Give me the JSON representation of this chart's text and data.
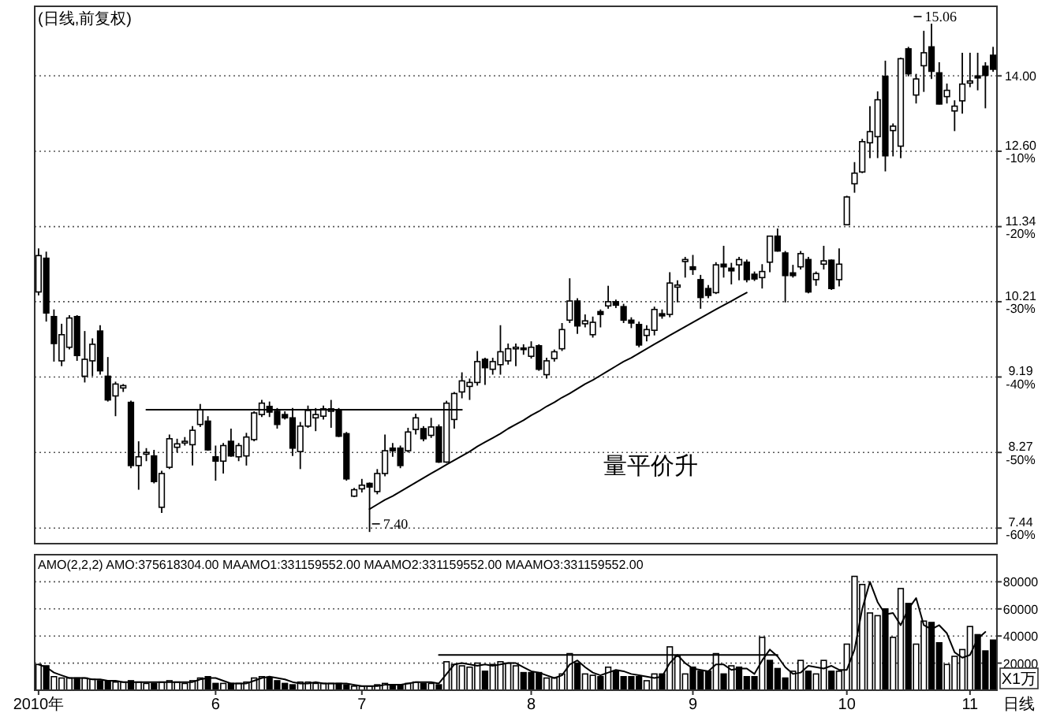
{
  "chart_data": [
    {
      "type": "candlestick",
      "title": "(日线,前复权)",
      "log": true,
      "grid": "y",
      "tick_labels": "y",
      "categories": [
        null,
        null,
        null,
        null,
        null,
        null,
        null,
        null,
        null,
        null,
        null,
        null,
        null,
        null,
        null,
        null,
        null,
        null,
        null,
        null,
        null,
        null,
        null,
        null,
        null,
        null,
        null,
        null,
        null,
        null,
        null,
        null,
        null,
        null,
        null,
        null,
        null,
        null,
        null,
        null,
        null,
        null,
        null,
        null,
        null,
        null,
        null,
        null,
        null,
        null,
        null,
        null,
        null,
        null,
        null,
        null,
        null,
        null,
        null,
        null,
        null,
        null,
        null,
        null,
        null,
        null,
        null,
        null,
        null,
        null,
        null,
        null,
        null,
        null,
        null,
        null,
        null,
        null,
        null,
        null,
        null,
        null,
        null,
        null,
        null,
        null,
        null,
        null,
        null,
        null,
        null,
        null,
        null,
        null,
        null,
        null,
        null,
        null,
        null,
        null,
        null,
        null,
        null,
        null,
        null,
        null,
        null,
        null,
        null,
        null,
        null,
        null,
        null,
        null,
        null,
        null,
        null,
        null,
        null,
        null,
        null,
        null,
        null,
        null,
        null
      ],
      "ylim": [
        7.28,
        15.43
      ],
      "yticks": [
        {
          "value": 14,
          "label": "14.00"
        },
        {
          "value": 12.6,
          "label": "12.60"
        },
        {
          "value": 11.34,
          "label": "11.34"
        },
        {
          "value": 10.21,
          "label": "10.21"
        },
        {
          "value": 9.19,
          "label": "9.19"
        },
        {
          "value": 8.27,
          "label": "8.27"
        },
        {
          "value": 7.44,
          "label": "7.44"
        }
      ],
      "y2lim": [
        -62.07,
        9.24
      ],
      "y2ticks": [
        {
          "value": -10,
          "label": "-10%"
        },
        {
          "value": -20,
          "label": "-20%"
        },
        {
          "value": -30,
          "label": "-30%"
        },
        {
          "value": -40,
          "label": "-40%"
        },
        {
          "value": -50,
          "label": "-50%"
        },
        {
          "value": -60,
          "label": "-60%"
        }
      ],
      "ohlc": [
        [
          10.35,
          11.0,
          10.3,
          10.89
        ],
        [
          10.85,
          10.95,
          9.93,
          10.05
        ],
        [
          10.0,
          10.1,
          9.39,
          9.63
        ],
        [
          9.4,
          9.9,
          9.33,
          9.75
        ],
        [
          9.58,
          10.02,
          9.55,
          9.98
        ],
        [
          10.0,
          10.02,
          9.4,
          9.47
        ],
        [
          9.2,
          9.8,
          9.12,
          9.42
        ],
        [
          9.4,
          9.7,
          9.2,
          9.62
        ],
        [
          9.8,
          9.88,
          9.22,
          9.27
        ],
        [
          9.2,
          9.45,
          8.88,
          8.9
        ],
        [
          8.95,
          9.13,
          8.7,
          9.1
        ],
        [
          9.05,
          9.1,
          9.0,
          9.08
        ],
        [
          8.87,
          8.89,
          8.09,
          8.12
        ],
        [
          8.12,
          8.4,
          7.85,
          8.22
        ],
        [
          8.25,
          8.32,
          8.17,
          8.27
        ],
        [
          8.23,
          8.3,
          7.92,
          7.94
        ],
        [
          7.66,
          8.06,
          7.6,
          8.03
        ],
        [
          8.1,
          8.48,
          8.08,
          8.43
        ],
        [
          8.33,
          8.43,
          8.27,
          8.37
        ],
        [
          8.38,
          8.45,
          8.35,
          8.4
        ],
        [
          8.36,
          8.58,
          8.12,
          8.53
        ],
        [
          8.6,
          8.85,
          8.57,
          8.78
        ],
        [
          8.64,
          8.7,
          8.29,
          8.3
        ],
        [
          8.22,
          8.35,
          7.95,
          8.17
        ],
        [
          8.17,
          8.38,
          8.03,
          8.35
        ],
        [
          8.4,
          8.55,
          8.22,
          8.23
        ],
        [
          8.22,
          8.38,
          8.17,
          8.35
        ],
        [
          8.23,
          8.5,
          8.12,
          8.45
        ],
        [
          8.42,
          8.76,
          8.4,
          8.74
        ],
        [
          8.72,
          8.9,
          8.69,
          8.86
        ],
        [
          8.82,
          8.88,
          8.69,
          8.75
        ],
        [
          8.76,
          8.8,
          8.55,
          8.6
        ],
        [
          8.72,
          8.76,
          8.66,
          8.68
        ],
        [
          8.68,
          8.8,
          8.23,
          8.32
        ],
        [
          8.28,
          8.63,
          8.08,
          8.58
        ],
        [
          8.58,
          8.83,
          8.56,
          8.77
        ],
        [
          8.68,
          8.8,
          8.52,
          8.72
        ],
        [
          8.7,
          8.83,
          8.66,
          8.79
        ],
        [
          8.76,
          8.9,
          8.56,
          8.79
        ],
        [
          8.78,
          8.8,
          8.45,
          8.46
        ],
        [
          8.49,
          8.51,
          7.95,
          7.97
        ],
        [
          7.78,
          7.87,
          7.77,
          7.85
        ],
        [
          7.86,
          7.97,
          7.82,
          7.9
        ],
        [
          7.92,
          7.93,
          7.4,
          7.88
        ],
        [
          7.83,
          8.08,
          7.8,
          8.03
        ],
        [
          8.03,
          8.48,
          8.0,
          8.29
        ],
        [
          8.32,
          8.38,
          8.22,
          8.29
        ],
        [
          8.32,
          8.35,
          8.09,
          8.12
        ],
        [
          8.29,
          8.56,
          8.27,
          8.51
        ],
        [
          8.54,
          8.73,
          8.48,
          8.68
        ],
        [
          8.55,
          8.58,
          8.4,
          8.43
        ],
        [
          8.47,
          8.68,
          8.44,
          8.57
        ],
        [
          8.57,
          8.6,
          8.15,
          8.16
        ],
        [
          8.16,
          8.89,
          8.15,
          8.86
        ],
        [
          8.66,
          9.0,
          8.55,
          8.98
        ],
        [
          9.0,
          9.25,
          8.92,
          9.14
        ],
        [
          9.07,
          9.17,
          8.9,
          9.12
        ],
        [
          9.12,
          9.53,
          9.08,
          9.39
        ],
        [
          9.42,
          9.44,
          9.09,
          9.31
        ],
        [
          9.29,
          9.44,
          9.22,
          9.39
        ],
        [
          9.35,
          9.88,
          9.22,
          9.52
        ],
        [
          9.4,
          9.63,
          9.35,
          9.56
        ],
        [
          9.56,
          9.63,
          9.33,
          9.58
        ],
        [
          9.57,
          9.62,
          9.48,
          9.55
        ],
        [
          9.46,
          9.66,
          9.43,
          9.58
        ],
        [
          9.6,
          9.62,
          9.27,
          9.29
        ],
        [
          9.22,
          9.44,
          9.17,
          9.4
        ],
        [
          9.43,
          9.55,
          9.39,
          9.52
        ],
        [
          9.56,
          9.91,
          9.53,
          9.82
        ],
        [
          9.95,
          10.55,
          9.91,
          10.22
        ],
        [
          10.22,
          10.26,
          9.76,
          9.87
        ],
        [
          9.9,
          10.03,
          9.85,
          9.94
        ],
        [
          9.75,
          10.0,
          9.71,
          9.92
        ],
        [
          10.07,
          10.1,
          9.85,
          10.03
        ],
        [
          10.15,
          10.44,
          10.11,
          10.21
        ],
        [
          10.21,
          10.24,
          10.12,
          10.16
        ],
        [
          10.14,
          10.18,
          9.91,
          9.95
        ],
        [
          9.95,
          9.99,
          9.84,
          9.91
        ],
        [
          9.89,
          9.93,
          9.58,
          9.61
        ],
        [
          9.74,
          9.88,
          9.66,
          9.82
        ],
        [
          9.81,
          10.14,
          9.74,
          10.1
        ],
        [
          10.04,
          10.1,
          9.97,
          10.01
        ],
        [
          10.03,
          10.64,
          9.99,
          10.48
        ],
        [
          10.42,
          10.52,
          10.2,
          10.45
        ],
        [
          10.8,
          10.87,
          10.56,
          10.83
        ],
        [
          10.72,
          10.9,
          10.6,
          10.68
        ],
        [
          10.53,
          10.6,
          10.11,
          10.27
        ],
        [
          10.4,
          10.45,
          10.26,
          10.3
        ],
        [
          10.34,
          10.79,
          10.32,
          10.75
        ],
        [
          10.76,
          11.04,
          10.56,
          10.72
        ],
        [
          10.7,
          10.78,
          10.46,
          10.66
        ],
        [
          10.75,
          10.87,
          10.52,
          10.83
        ],
        [
          10.79,
          10.83,
          10.49,
          10.53
        ],
        [
          10.61,
          10.65,
          10.51,
          10.54
        ],
        [
          10.56,
          10.76,
          10.4,
          10.65
        ],
        [
          10.79,
          11.19,
          10.64,
          11.19
        ],
        [
          11.19,
          11.31,
          10.95,
          10.96
        ],
        [
          10.93,
          10.96,
          10.2,
          10.59
        ],
        [
          10.63,
          10.75,
          10.56,
          10.59
        ],
        [
          10.72,
          10.96,
          10.68,
          10.92
        ],
        [
          10.83,
          10.87,
          10.33,
          10.35
        ],
        [
          10.53,
          10.65,
          10.44,
          10.62
        ],
        [
          10.76,
          11.04,
          10.68,
          10.81
        ],
        [
          10.82,
          10.83,
          10.38,
          10.4
        ],
        [
          10.53,
          11.0,
          10.43,
          10.76
        ],
        [
          11.37,
          11.84,
          11.36,
          11.82
        ],
        [
          12.04,
          12.41,
          11.89,
          12.22
        ],
        [
          12.24,
          12.82,
          12.22,
          12.77
        ],
        [
          12.75,
          13.42,
          12.48,
          12.95
        ],
        [
          12.86,
          13.7,
          12.48,
          13.54
        ],
        [
          13.99,
          14.3,
          12.25,
          12.52
        ],
        [
          12.97,
          13.1,
          12.51,
          13.05
        ],
        [
          12.69,
          14.36,
          12.48,
          14.34
        ],
        [
          14.54,
          14.58,
          13.99,
          14.04
        ],
        [
          13.63,
          14.04,
          13.47,
          13.94
        ],
        [
          14.2,
          14.91,
          13.69,
          14.46
        ],
        [
          14.58,
          15.06,
          13.94,
          14.09
        ],
        [
          14.06,
          14.27,
          13.45,
          13.46
        ],
        [
          13.6,
          13.85,
          13.47,
          13.72
        ],
        [
          13.33,
          13.53,
          12.96,
          13.42
        ],
        [
          13.52,
          14.46,
          13.28,
          13.84
        ],
        [
          13.86,
          14.46,
          13.78,
          13.9
        ],
        [
          14.0,
          14.46,
          13.72,
          13.96
        ],
        [
          14.19,
          14.27,
          13.38,
          14.01
        ],
        [
          14.41,
          14.58,
          14.08,
          14.13
        ]
      ],
      "series": [
        {
          "type": "line",
          "color": "#000000",
          "values": [
            null,
            null,
            null,
            null,
            null,
            null,
            null,
            null,
            null,
            null,
            null,
            null,
            null,
            null,
            8.78,
            8.78,
            8.78,
            8.78,
            8.78,
            8.78,
            8.78,
            8.78,
            8.78,
            8.78,
            8.78,
            8.78,
            8.78,
            8.78,
            8.78,
            8.78,
            8.78,
            8.78,
            8.78,
            8.78,
            8.78,
            8.78,
            8.78,
            8.78,
            8.78,
            8.78,
            8.78,
            8.78,
            8.78,
            8.78,
            8.78,
            8.78,
            8.78,
            8.78,
            8.78,
            8.78,
            8.78,
            8.78,
            8.78,
            8.78,
            8.78,
            8.78,
            null,
            null,
            null,
            null,
            null,
            null,
            null,
            null,
            null,
            null,
            null,
            null,
            null,
            null,
            null,
            null,
            null,
            null,
            null,
            null,
            null,
            null,
            null,
            null,
            null,
            null,
            null,
            null,
            null,
            null,
            null,
            null,
            null,
            null,
            null,
            null,
            null,
            null,
            null,
            null,
            null,
            null,
            null,
            null,
            null,
            null,
            null,
            null,
            null,
            null,
            null,
            null,
            null,
            null,
            null,
            null,
            null,
            null,
            null,
            null,
            null,
            null,
            null,
            null,
            null,
            null,
            null,
            null,
            null
          ]
        },
        {
          "type": "line",
          "color": "#000000",
          "values": [
            null,
            null,
            null,
            null,
            null,
            null,
            null,
            null,
            null,
            null,
            null,
            null,
            null,
            null,
            null,
            null,
            null,
            null,
            null,
            null,
            null,
            null,
            null,
            null,
            null,
            null,
            null,
            null,
            null,
            null,
            null,
            null,
            null,
            null,
            null,
            null,
            null,
            null,
            null,
            null,
            null,
            null,
            null,
            7.64,
            7.69,
            7.74,
            7.78,
            7.83,
            7.88,
            7.93,
            7.98,
            8.03,
            8.08,
            8.13,
            8.18,
            8.23,
            8.28,
            8.34,
            8.39,
            8.44,
            8.49,
            8.55,
            8.6,
            8.65,
            8.71,
            8.76,
            8.82,
            8.87,
            8.93,
            8.98,
            9.04,
            9.1,
            9.15,
            9.21,
            9.27,
            9.33,
            9.39,
            9.44,
            9.5,
            9.56,
            9.62,
            9.68,
            9.74,
            9.8,
            9.86,
            9.92,
            9.98,
            10.04,
            10.1,
            10.16,
            10.22,
            10.28,
            10.34,
            null,
            null,
            null,
            null,
            null,
            null,
            null,
            null,
            null,
            null,
            null,
            null,
            null,
            null,
            null,
            null,
            null,
            null,
            null,
            null,
            null,
            null,
            null,
            null,
            null,
            null,
            null,
            null,
            null,
            null,
            null,
            null
          ]
        }
      ],
      "annotations": [
        "7.40",
        "15.06",
        "量平价升"
      ]
    },
    {
      "type": "bar",
      "title": "AMO(2,2,2) AMO:375618304.00 MAAMO1:331159552.00 MAAMO2:331159552.00 MAAMO3:331159552.00",
      "ylabel": "X1万",
      "grid": "y",
      "categories": [
        "2010年",
        null,
        null,
        null,
        null,
        null,
        null,
        null,
        null,
        null,
        null,
        null,
        null,
        null,
        null,
        null,
        null,
        null,
        null,
        null,
        null,
        null,
        null,
        "6",
        null,
        null,
        null,
        null,
        null,
        null,
        null,
        null,
        null,
        null,
        null,
        null,
        null,
        null,
        null,
        null,
        null,
        null,
        "7",
        null,
        null,
        null,
        null,
        null,
        null,
        null,
        null,
        null,
        null,
        null,
        null,
        null,
        null,
        null,
        null,
        null,
        null,
        null,
        null,
        null,
        "8",
        null,
        null,
        null,
        null,
        null,
        null,
        null,
        null,
        null,
        null,
        null,
        null,
        null,
        null,
        null,
        null,
        null,
        null,
        null,
        null,
        "9",
        null,
        null,
        null,
        null,
        null,
        null,
        null,
        null,
        null,
        null,
        null,
        null,
        null,
        null,
        null,
        null,
        null,
        null,
        null,
        "10",
        null,
        null,
        null,
        null,
        null,
        null,
        null,
        null,
        null,
        null,
        null,
        null,
        null,
        null,
        null,
        "11",
        null,
        null,
        null
      ],
      "ylim": [
        0,
        100000
      ],
      "yticks": [
        20000,
        40000,
        60000,
        80000
      ],
      "series": [
        {
          "values": [
            19000,
            18000,
            10000,
            9000,
            9000,
            9000,
            9000,
            8000,
            7000,
            7000,
            6000,
            6000,
            7000,
            6000,
            5000,
            5000,
            6000,
            7000,
            6000,
            5000,
            7000,
            9000,
            10000,
            5000,
            5000,
            5000,
            5000,
            6000,
            9000,
            10000,
            9000,
            7000,
            5000,
            4000,
            6000,
            6000,
            5000,
            5000,
            5000,
            5000,
            4000,
            3000,
            3000,
            3000,
            4000,
            5000,
            4000,
            4000,
            5000,
            6000,
            5000,
            5000,
            4000,
            21000,
            19000,
            18000,
            17000,
            20000,
            14000,
            19000,
            21000,
            20000,
            18000,
            13000,
            13000,
            13000,
            9000,
            9000,
            12000,
            27000,
            20000,
            12000,
            11000,
            10000,
            17000,
            14000,
            10000,
            10000,
            10000,
            7000,
            12000,
            12000,
            32000,
            25000,
            12000,
            17000,
            14000,
            14000,
            27000,
            12000,
            18000,
            17000,
            10000,
            10000,
            39000,
            22000,
            16000,
            9000,
            14000,
            22000,
            14000,
            12000,
            22000,
            14000,
            14000,
            34000,
            84000,
            78000,
            57000,
            55000,
            60000,
            39000,
            75000,
            64000,
            34000,
            51000,
            50000,
            35000,
            19000,
            25000,
            30000,
            47000,
            41000,
            29000,
            37000
          ],
          "colors": [
            "#ffffff",
            "#000000",
            "#ffffff",
            "#ffffff",
            "#ffffff",
            "#000000",
            "#ffffff",
            "#ffffff",
            "#000000",
            "#000000",
            "#ffffff",
            "#ffffff",
            "#000000",
            "#ffffff",
            "#ffffff",
            "#000000",
            "#ffffff",
            "#ffffff",
            "#ffffff",
            "#ffffff",
            "#ffffff",
            "#ffffff",
            "#000000",
            "#000000",
            "#ffffff",
            "#000000",
            "#ffffff",
            "#ffffff",
            "#ffffff",
            "#ffffff",
            "#000000",
            "#000000",
            "#000000",
            "#000000",
            "#ffffff",
            "#ffffff",
            "#ffffff",
            "#ffffff",
            "#ffffff",
            "#000000",
            "#000000",
            "#ffffff",
            "#ffffff",
            "#ffffff",
            "#ffffff",
            "#ffffff",
            "#000000",
            "#000000",
            "#ffffff",
            "#ffffff",
            "#000000",
            "#ffffff",
            "#000000",
            "#ffffff",
            "#ffffff",
            "#ffffff",
            "#ffffff",
            "#ffffff",
            "#000000",
            "#ffffff",
            "#ffffff",
            "#ffffff",
            "#ffffff",
            "#000000",
            "#000000",
            "#000000",
            "#ffffff",
            "#ffffff",
            "#ffffff",
            "#ffffff",
            "#000000",
            "#ffffff",
            "#ffffff",
            "#000000",
            "#ffffff",
            "#000000",
            "#000000",
            "#000000",
            "#000000",
            "#ffffff",
            "#ffffff",
            "#000000",
            "#ffffff",
            "#ffffff",
            "#ffffff",
            "#000000",
            "#000000",
            "#000000",
            "#ffffff",
            "#000000",
            "#ffffff",
            "#000000",
            "#000000",
            "#000000",
            "#ffffff",
            "#000000",
            "#000000",
            "#000000",
            "#ffffff",
            "#ffffff",
            "#000000",
            "#ffffff",
            "#ffffff",
            "#000000",
            "#ffffff",
            "#ffffff",
            "#ffffff",
            "#ffffff",
            "#ffffff",
            "#ffffff",
            "#000000",
            "#ffffff",
            "#ffffff",
            "#000000",
            "#ffffff",
            "#ffffff",
            "#000000",
            "#000000",
            "#ffffff",
            "#ffffff",
            "#ffffff",
            "#ffffff",
            "#000000",
            "#000000",
            "#000000"
          ]
        },
        {
          "type": "line",
          "color": "#000000",
          "values": [
            19000,
            17000,
            13000,
            11000,
            9000,
            9000,
            9000,
            8000,
            8000,
            7000,
            7000,
            6000,
            6000,
            6000,
            6000,
            6000,
            6000,
            6000,
            6000,
            6000,
            6000,
            8000,
            9000,
            9000,
            7000,
            5000,
            5000,
            5000,
            7000,
            9000,
            10000,
            9000,
            8000,
            6000,
            5000,
            5000,
            6000,
            5000,
            5000,
            5000,
            5000,
            4000,
            3000,
            3000,
            3000,
            4000,
            4000,
            4000,
            5000,
            6000,
            6000,
            6000,
            5000,
            12000,
            19000,
            20000,
            19000,
            18000,
            19000,
            18000,
            19000,
            20000,
            20000,
            17000,
            14000,
            13000,
            11000,
            9000,
            11000,
            19000,
            22000,
            17000,
            13000,
            11000,
            13000,
            15000,
            14000,
            12000,
            11000,
            10000,
            9000,
            10000,
            20000,
            26000,
            20000,
            16000,
            15000,
            14000,
            19000,
            19000,
            15000,
            16000,
            16000,
            12000,
            22000,
            30000,
            25000,
            17000,
            12000,
            13000,
            18000,
            17000,
            16000,
            18000,
            15000,
            15000,
            30000,
            60000,
            80000,
            65000,
            56000,
            57000,
            48000,
            60000,
            68000,
            48000,
            45000,
            48000,
            42000,
            28000,
            24000,
            26000,
            38000,
            43000,
            null
          ]
        },
        {
          "type": "line",
          "color": "#000000",
          "values": [
            null,
            null,
            null,
            null,
            null,
            null,
            null,
            null,
            null,
            null,
            null,
            null,
            null,
            null,
            null,
            null,
            null,
            null,
            null,
            null,
            null,
            null,
            null,
            null,
            null,
            null,
            null,
            null,
            null,
            null,
            null,
            null,
            null,
            null,
            null,
            null,
            null,
            null,
            null,
            null,
            null,
            null,
            null,
            null,
            null,
            null,
            null,
            null,
            null,
            null,
            null,
            null,
            26000,
            26000,
            26000,
            26000,
            26000,
            26000,
            26000,
            26000,
            26000,
            26000,
            26000,
            26000,
            26000,
            26000,
            26000,
            26000,
            26000,
            26000,
            26000,
            26000,
            26000,
            26000,
            26000,
            26000,
            26000,
            26000,
            26000,
            26000,
            26000,
            26000,
            26000,
            26000,
            26000,
            26000,
            26000,
            26000,
            26000,
            26000,
            26000,
            26000,
            26000,
            26000,
            26000,
            26000,
            26000,
            null,
            null,
            null,
            null,
            null,
            null,
            null,
            null,
            null,
            null,
            null,
            null,
            null,
            null,
            null,
            null,
            null,
            null,
            null,
            null,
            null,
            null,
            null,
            null,
            null,
            null,
            null,
            null
          ]
        }
      ],
      "annotations": [
        "日线"
      ]
    }
  ]
}
